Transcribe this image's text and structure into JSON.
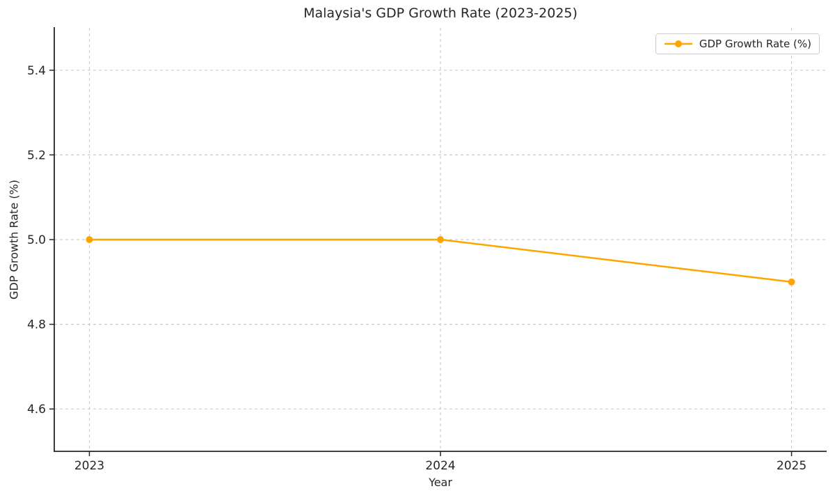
{
  "figure": {
    "background": "#ffffff",
    "text_color": "#262626",
    "spine_color": "#262626",
    "grid_color": "#cccccc"
  },
  "chart_data": {
    "type": "line",
    "title": "Malaysia's GDP Growth Rate (2023-2025)",
    "xlabel": "Year",
    "ylabel": "GDP Growth Rate (%)",
    "x": [
      2023,
      2024,
      2025
    ],
    "xtick_labels": [
      "2023",
      "2024",
      "2025"
    ],
    "series": [
      {
        "name": "GDP Growth Rate (%)",
        "values": [
          5.0,
          5.0,
          4.9
        ],
        "color": "#FFA500",
        "marker": "circle"
      }
    ],
    "xlim": [
      2022.9,
      2025.1
    ],
    "ylim": [
      4.5,
      5.5
    ],
    "yticks": [
      4.6,
      4.8,
      5.0,
      5.2,
      5.4
    ],
    "ytick_labels": [
      "4.6",
      "4.8",
      "5.0",
      "5.2",
      "5.4"
    ],
    "grid": {
      "visible": true,
      "style": "dashed"
    },
    "legend": {
      "visible": true,
      "position": "upper right"
    }
  }
}
